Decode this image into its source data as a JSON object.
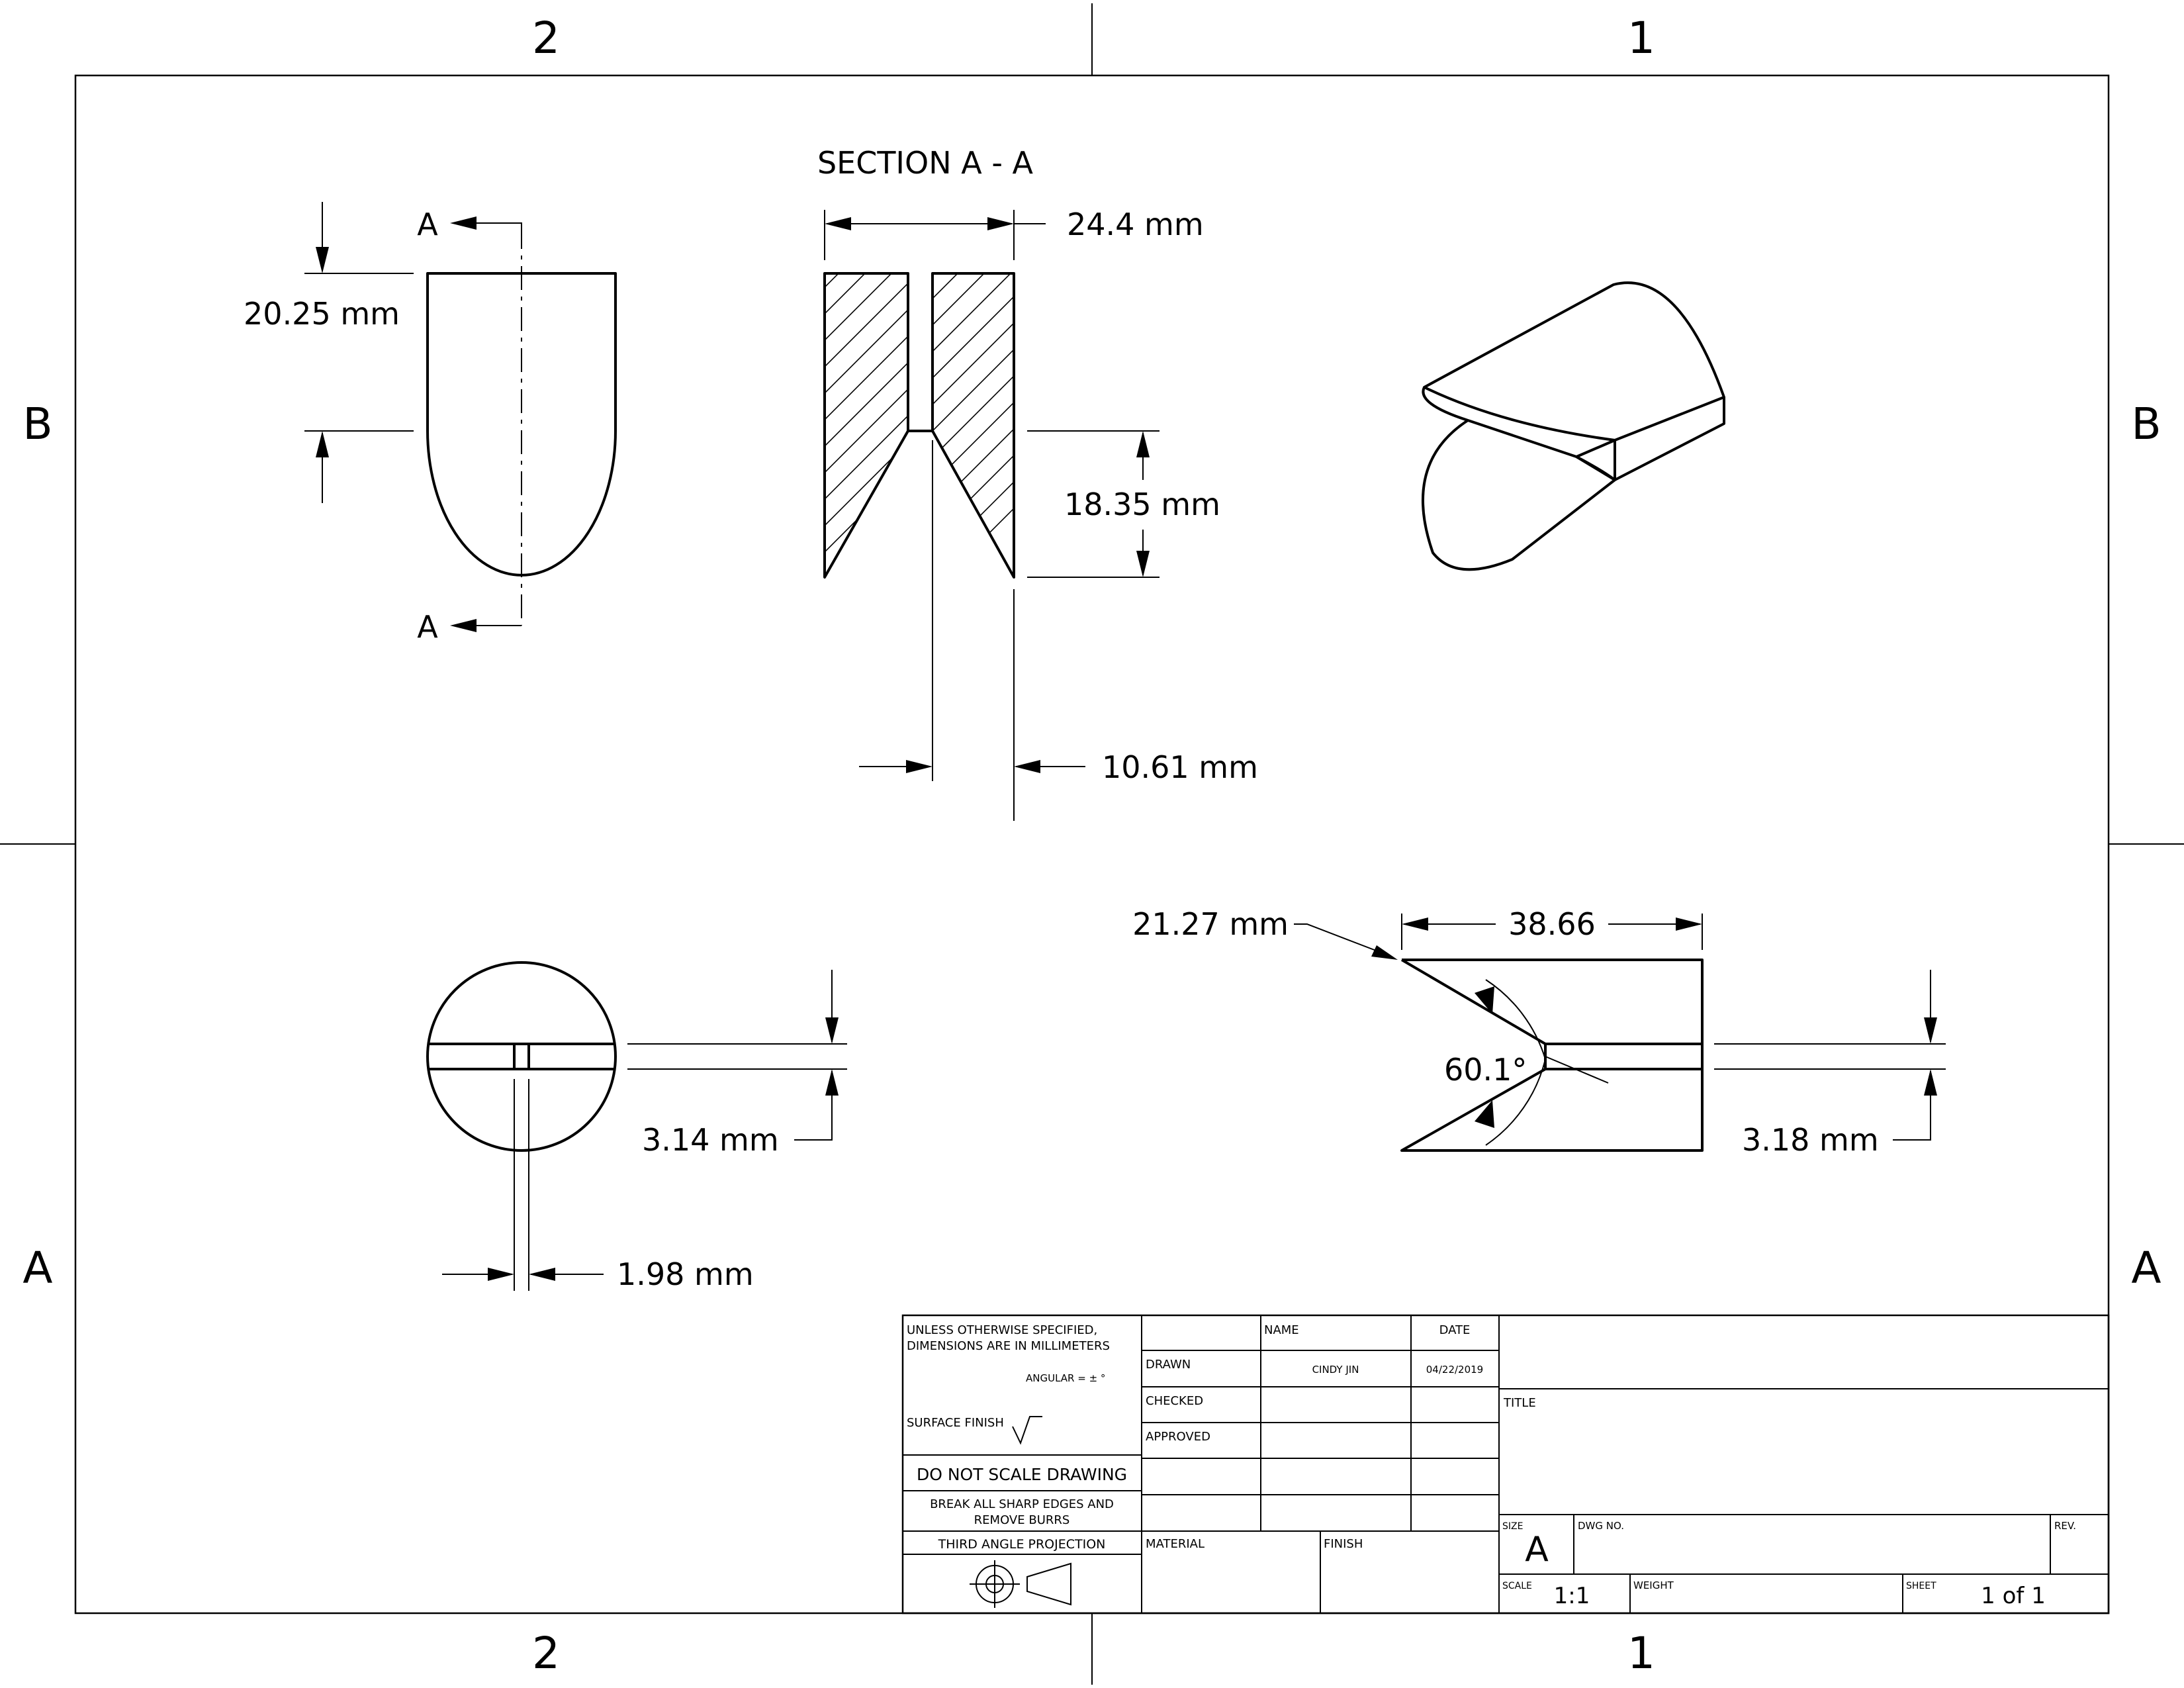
{
  "zones": {
    "col_left": "2",
    "col_right": "1",
    "row_top": "B",
    "row_bottom": "A"
  },
  "views": {
    "section_title": "SECTION A - A",
    "cut_label": "A",
    "dims": {
      "top_height": "20.25 mm",
      "section_width": "24.4 mm",
      "section_depth": "18.35 mm",
      "section_offset": "10.61 mm",
      "circle_slot": "3.14 mm",
      "circle_pin": "1.98 mm",
      "side_chamfer": "21.27 mm",
      "side_length": "38.66",
      "side_angle": "60.1°",
      "side_slot": "3.18 mm"
    }
  },
  "title_block": {
    "tolerance_note_1": "UNLESS OTHERWISE SPECIFIED,",
    "tolerance_note_2": "DIMENSIONS ARE IN MILLIMETERS",
    "angular": "ANGULAR = ± °",
    "surface_finish": "SURFACE FINISH",
    "do_not_scale": "DO NOT SCALE DRAWING",
    "break_edges_1": "BREAK ALL SHARP EDGES AND",
    "break_edges_2": "REMOVE BURRS",
    "projection": "THIRD ANGLE PROJECTION",
    "name_header": "NAME",
    "date_header": "DATE",
    "drawn_label": "DRAWN",
    "drawn_name": "CINDY JIN",
    "drawn_date": "04/22/2019",
    "checked_label": "CHECKED",
    "approved_label": "APPROVED",
    "material_label": "MATERIAL",
    "finish_label": "FINISH",
    "title_label": "TITLE",
    "size_label": "SIZE",
    "size_value": "A",
    "dwg_no_label": "DWG NO.",
    "rev_label": "REV.",
    "scale_label": "SCALE",
    "scale_value": "1:1",
    "weight_label": "WEIGHT",
    "sheet_label": "SHEET",
    "sheet_value": "1 of 1"
  }
}
